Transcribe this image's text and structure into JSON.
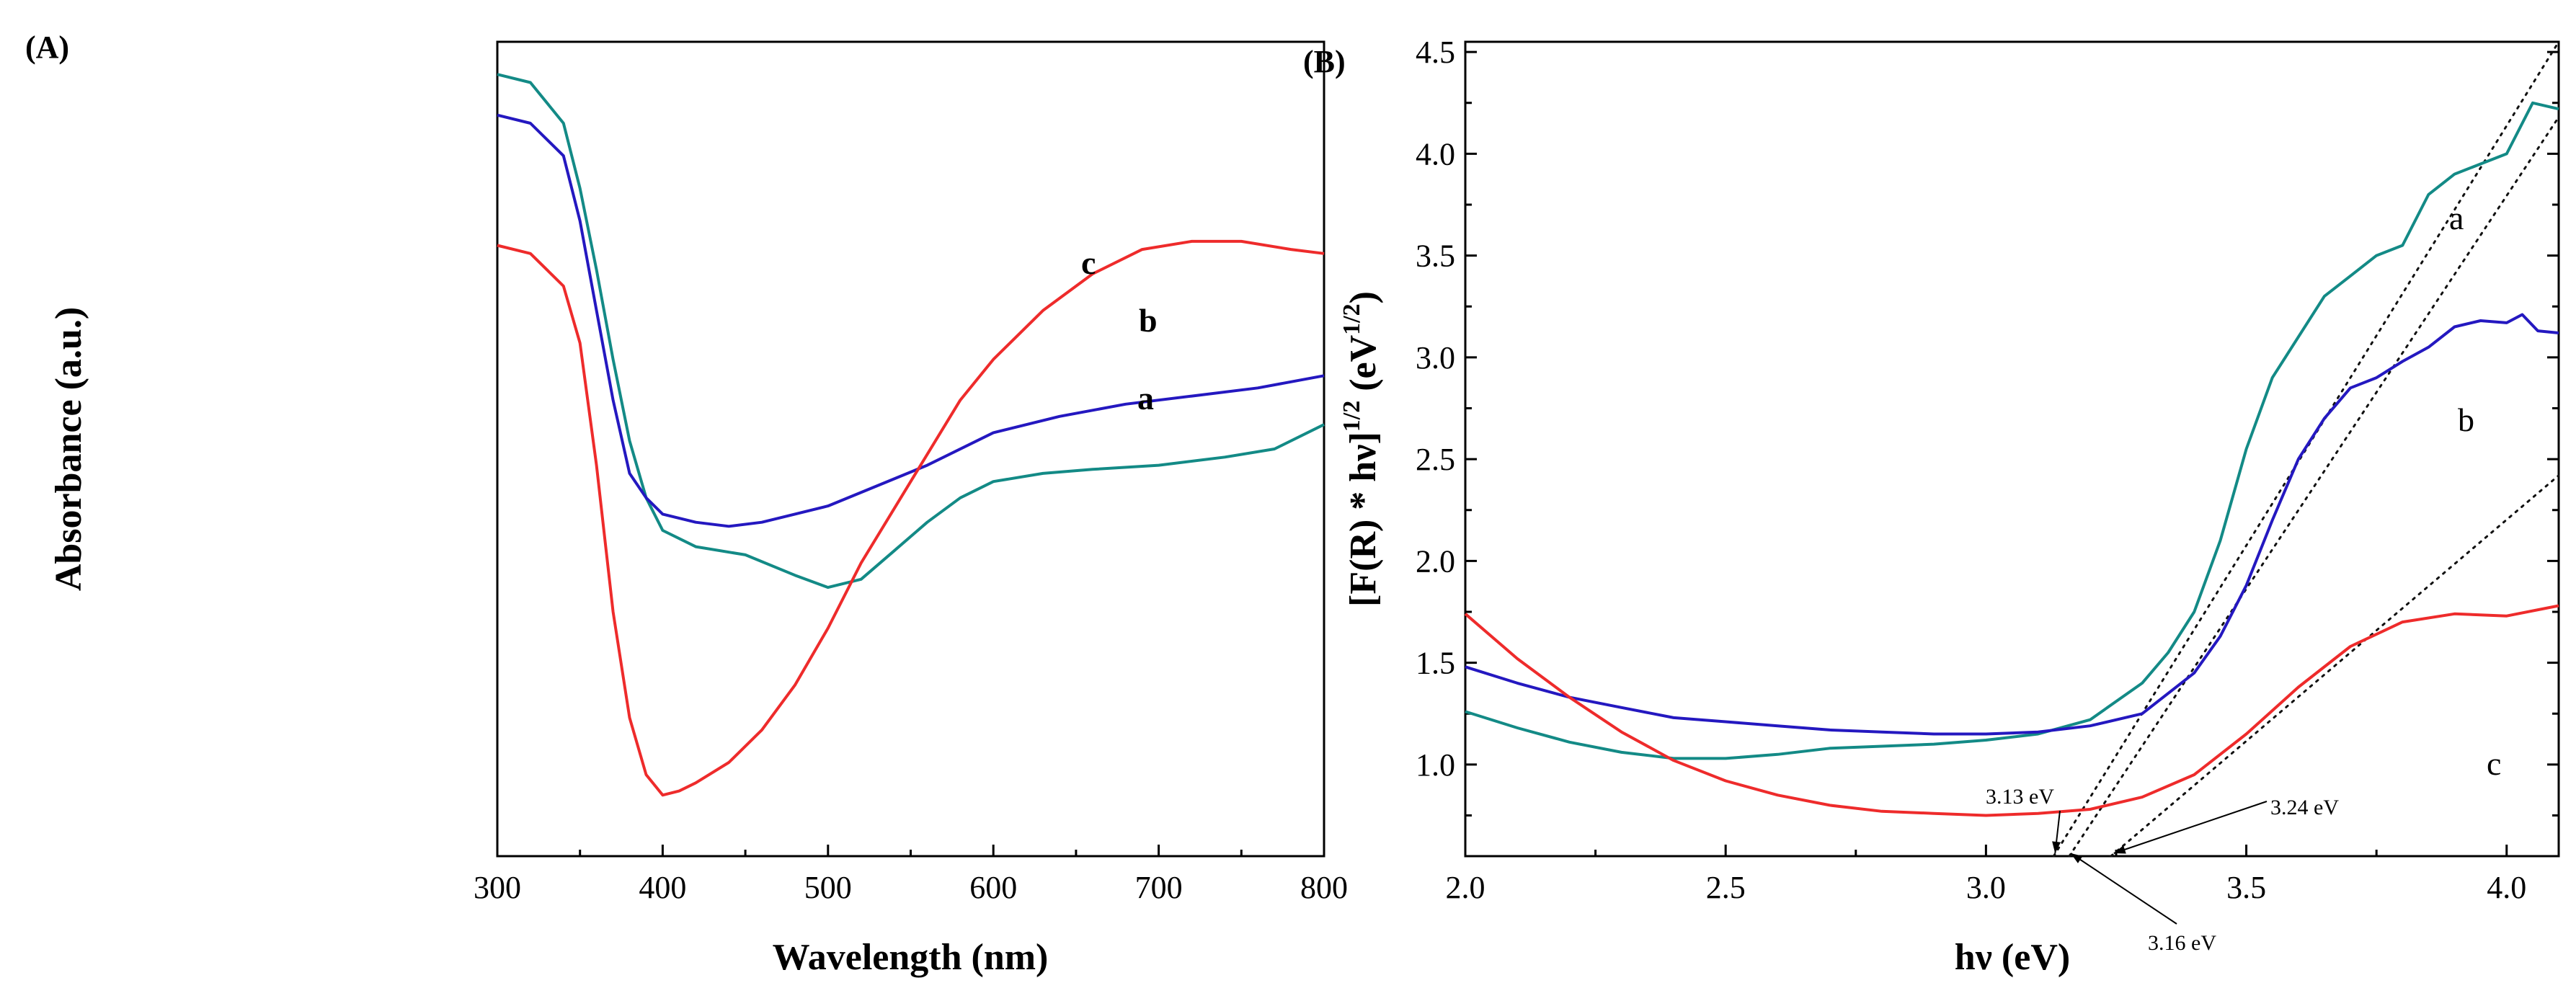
{
  "chart_data": [
    {
      "panel": "(A)",
      "type": "line",
      "xlabel": "Wavelength (nm)",
      "ylabel": "Absorbance (a.u.)",
      "xlim": [
        300,
        800
      ],
      "ylim": [
        0,
        1
      ],
      "xticks": [
        "300",
        "400",
        "500",
        "600",
        "700",
        "800"
      ],
      "xtick_values": [
        300,
        400,
        500,
        600,
        700,
        800
      ],
      "show_y_tick_labels": false,
      "colors": {
        "a": "#138a86",
        "b": "#2418c0",
        "c": "#ee2b2b"
      },
      "series": [
        {
          "name": "a",
          "label": "a",
          "x": [
            300,
            320,
            340,
            350,
            360,
            370,
            380,
            390,
            400,
            420,
            450,
            480,
            500,
            520,
            540,
            560,
            580,
            600,
            630,
            660,
            700,
            740,
            770,
            800
          ],
          "y": [
            0.96,
            0.95,
            0.9,
            0.82,
            0.72,
            0.61,
            0.51,
            0.44,
            0.4,
            0.38,
            0.37,
            0.345,
            0.33,
            0.34,
            0.375,
            0.41,
            0.44,
            0.46,
            0.47,
            0.475,
            0.48,
            0.49,
            0.5,
            0.53
          ]
        },
        {
          "name": "b",
          "label": "b",
          "x": [
            300,
            320,
            340,
            350,
            360,
            370,
            380,
            390,
            400,
            420,
            440,
            460,
            480,
            500,
            530,
            560,
            600,
            640,
            680,
            720,
            760,
            800
          ],
          "y": [
            0.91,
            0.9,
            0.86,
            0.78,
            0.67,
            0.56,
            0.47,
            0.44,
            0.42,
            0.41,
            0.405,
            0.41,
            0.42,
            0.43,
            0.455,
            0.48,
            0.52,
            0.54,
            0.555,
            0.565,
            0.575,
            0.59
          ]
        },
        {
          "name": "c",
          "label": "c",
          "x": [
            300,
            320,
            340,
            350,
            360,
            370,
            380,
            390,
            400,
            410,
            420,
            440,
            460,
            480,
            500,
            520,
            550,
            580,
            600,
            630,
            660,
            690,
            720,
            750,
            780,
            800
          ],
          "y": [
            0.75,
            0.74,
            0.7,
            0.63,
            0.48,
            0.3,
            0.17,
            0.1,
            0.075,
            0.08,
            0.09,
            0.115,
            0.155,
            0.21,
            0.28,
            0.36,
            0.46,
            0.56,
            0.61,
            0.67,
            0.715,
            0.745,
            0.755,
            0.755,
            0.745,
            0.74
          ]
        }
      ]
    },
    {
      "panel": "(B)",
      "type": "line",
      "xlabel": "hν (eV)",
      "ylabel": "[F(R) * hν]",
      "ylabel_exp1": "1/2",
      "ylabel_unit": " (eV",
      "ylabel_exp2": "1/2",
      "ylabel_close": ")",
      "xlim": [
        2.0,
        4.1
      ],
      "ylim": [
        0.55,
        4.55
      ],
      "xticks": [
        "2.0",
        "2.5",
        "3.0",
        "3.5",
        "4.0"
      ],
      "xtick_values": [
        2.0,
        2.5,
        3.0,
        3.5,
        4.0
      ],
      "yticks": [
        "1.0",
        "1.5",
        "2.0",
        "2.5",
        "3.0",
        "3.5",
        "4.0",
        "4.5"
      ],
      "ytick_values": [
        1.0,
        1.5,
        2.0,
        2.5,
        3.0,
        3.5,
        4.0,
        4.5
      ],
      "colors": {
        "a": "#138a86",
        "b": "#2418c0",
        "c": "#ee2b2b"
      },
      "series": [
        {
          "name": "a",
          "label": "a",
          "x": [
            2.0,
            2.1,
            2.2,
            2.3,
            2.4,
            2.5,
            2.6,
            2.7,
            2.8,
            2.9,
            3.0,
            3.1,
            3.2,
            3.3,
            3.35,
            3.4,
            3.45,
            3.5,
            3.55,
            3.6,
            3.65,
            3.7,
            3.75,
            3.8,
            3.85,
            3.9,
            3.95,
            4.0,
            4.05,
            4.1
          ],
          "y": [
            1.26,
            1.18,
            1.11,
            1.06,
            1.03,
            1.03,
            1.05,
            1.08,
            1.09,
            1.1,
            1.12,
            1.15,
            1.22,
            1.4,
            1.55,
            1.75,
            2.1,
            2.55,
            2.9,
            3.1,
            3.3,
            3.4,
            3.5,
            3.55,
            3.8,
            3.9,
            3.95,
            4.0,
            4.25,
            4.22
          ]
        },
        {
          "name": "b",
          "label": "b",
          "x": [
            2.0,
            2.1,
            2.2,
            2.3,
            2.4,
            2.5,
            2.6,
            2.7,
            2.8,
            2.9,
            3.0,
            3.1,
            3.2,
            3.3,
            3.4,
            3.45,
            3.5,
            3.55,
            3.6,
            3.65,
            3.7,
            3.75,
            3.8,
            3.85,
            3.9,
            3.95,
            4.0,
            4.03,
            4.06,
            4.1
          ],
          "y": [
            1.48,
            1.4,
            1.33,
            1.28,
            1.23,
            1.21,
            1.19,
            1.17,
            1.16,
            1.15,
            1.15,
            1.16,
            1.19,
            1.25,
            1.45,
            1.63,
            1.88,
            2.2,
            2.5,
            2.7,
            2.85,
            2.9,
            2.98,
            3.05,
            3.15,
            3.18,
            3.17,
            3.21,
            3.13,
            3.12
          ]
        },
        {
          "name": "c",
          "label": "c",
          "x": [
            2.0,
            2.1,
            2.2,
            2.3,
            2.4,
            2.5,
            2.6,
            2.7,
            2.8,
            2.9,
            3.0,
            3.1,
            3.2,
            3.3,
            3.4,
            3.5,
            3.6,
            3.7,
            3.8,
            3.9,
            4.0,
            4.1
          ],
          "y": [
            1.74,
            1.52,
            1.33,
            1.16,
            1.02,
            0.92,
            0.85,
            0.8,
            0.77,
            0.76,
            0.75,
            0.76,
            0.78,
            0.84,
            0.95,
            1.15,
            1.38,
            1.58,
            1.7,
            1.74,
            1.73,
            1.78
          ]
        }
      ],
      "tangents": [
        {
          "name": "a",
          "x": [
            3.13,
            4.1
          ],
          "y": [
            0.55,
            4.55
          ]
        },
        {
          "name": "b",
          "x": [
            3.16,
            4.1
          ],
          "y": [
            0.55,
            4.18
          ]
        },
        {
          "name": "c",
          "x": [
            3.24,
            4.1
          ],
          "y": [
            0.55,
            2.42
          ]
        }
      ],
      "annotations": [
        {
          "text": "3.13 eV",
          "x": 3.13
        },
        {
          "text": "3.16 eV",
          "x": 3.16
        },
        {
          "text": "3.24 eV",
          "x": 3.24
        }
      ]
    }
  ]
}
